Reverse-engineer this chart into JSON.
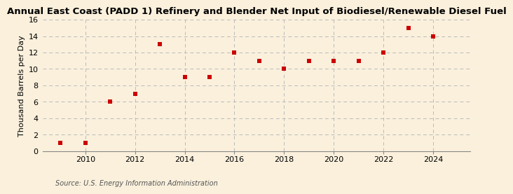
{
  "title": "Annual East Coast (PADD 1) Refinery and Blender Net Input of Biodiesel/Renewable Diesel Fuel",
  "ylabel": "Thousand Barrels per Day",
  "source": "Source: U.S. Energy Information Administration",
  "years": [
    2009,
    2010,
    2011,
    2012,
    2013,
    2014,
    2015,
    2016,
    2017,
    2018,
    2019,
    2020,
    2021,
    2022,
    2023,
    2024
  ],
  "values": [
    1.0,
    1.0,
    6.0,
    7.0,
    13.0,
    9.0,
    9.0,
    12.0,
    11.0,
    10.0,
    11.0,
    11.0,
    11.0,
    12.0,
    15.0,
    14.0
  ],
  "marker_color": "#CC0000",
  "marker_size": 22,
  "background_color": "#FAF0DC",
  "grid_color": "#BBBBBB",
  "ylim": [
    0,
    16
  ],
  "yticks": [
    0,
    2,
    4,
    6,
    8,
    10,
    12,
    14,
    16
  ],
  "xlim": [
    2008.3,
    2025.5
  ],
  "xticks": [
    2010,
    2012,
    2014,
    2016,
    2018,
    2020,
    2022,
    2024
  ],
  "title_fontsize": 9.5,
  "axis_label_fontsize": 8,
  "tick_fontsize": 8,
  "source_fontsize": 7
}
